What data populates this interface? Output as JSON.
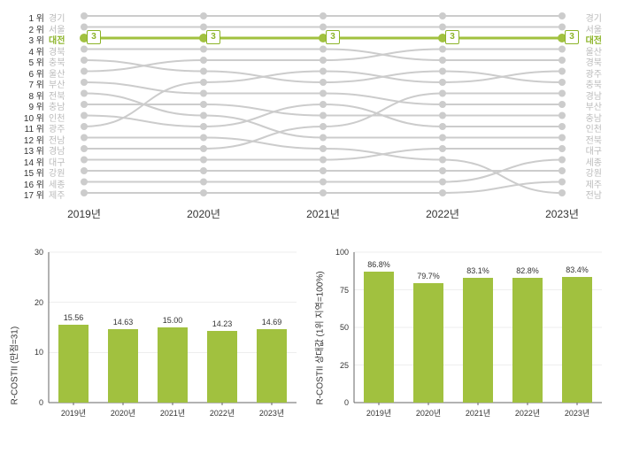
{
  "bump_chart": {
    "type": "bump",
    "years": [
      "2019년",
      "2020년",
      "2021년",
      "2022년",
      "2023년"
    ],
    "ranks": [
      "1 위",
      "2 위",
      "3 위",
      "4 위",
      "5 위",
      "6 위",
      "7 위",
      "8 위",
      "9 위",
      "10 위",
      "11 위",
      "12 위",
      "13 위",
      "14 위",
      "15 위",
      "16 위",
      "17 위"
    ],
    "regions_2019": [
      "경기",
      "서울",
      "대전",
      "경북",
      "충북",
      "울산",
      "부산",
      "전북",
      "충남",
      "인천",
      "광주",
      "전남",
      "경남",
      "대구",
      "강원",
      "세종",
      "제주"
    ],
    "regions_2023": [
      "경기",
      "서울",
      "대전",
      "울산",
      "경북",
      "광주",
      "충북",
      "경남",
      "부산",
      "충남",
      "인천",
      "전북",
      "대구",
      "세종",
      "강원",
      "제주",
      "전남"
    ],
    "highlight_region": "대전",
    "highlight_rank": 3,
    "highlight_badge": "3",
    "highlight_color": "#a1c13f",
    "muted_color": "#cccccc",
    "node_color": "#cccccc",
    "rank_series": {
      "경기": [
        1,
        1,
        1,
        1,
        1
      ],
      "서울": [
        2,
        2,
        2,
        2,
        2
      ],
      "대전": [
        3,
        3,
        3,
        3,
        3
      ],
      "경북": [
        4,
        4,
        4,
        5,
        5
      ],
      "충북": [
        5,
        6,
        7,
        6,
        7
      ],
      "울산": [
        6,
        5,
        5,
        4,
        4
      ],
      "부산": [
        7,
        8,
        8,
        9,
        9
      ],
      "전북": [
        8,
        10,
        12,
        12,
        12
      ],
      "충남": [
        9,
        9,
        10,
        10,
        10
      ],
      "인천": [
        10,
        11,
        9,
        11,
        11
      ],
      "광주": [
        11,
        7,
        6,
        7,
        6
      ],
      "전남": [
        12,
        12,
        13,
        14,
        17
      ],
      "경남": [
        13,
        13,
        11,
        8,
        8
      ],
      "대구": [
        14,
        14,
        14,
        13,
        13
      ],
      "강원": [
        15,
        15,
        15,
        15,
        15
      ],
      "세종": [
        16,
        16,
        16,
        16,
        14
      ],
      "제주": [
        17,
        17,
        17,
        17,
        16
      ]
    }
  },
  "left_chart": {
    "type": "bar",
    "ytitle": "R-COSTII (만점=31)",
    "categories": [
      "2019년",
      "2020년",
      "2021년",
      "2022년",
      "2023년"
    ],
    "values": [
      15.56,
      14.63,
      15.0,
      14.23,
      14.69
    ],
    "labels": [
      "15.56",
      "14.63",
      "15.00",
      "14.23",
      "14.69"
    ],
    "ylim": [
      0,
      30
    ],
    "yticks": [
      0,
      10,
      20,
      30
    ],
    "bar_color": "#a1c13f",
    "bg": "#ffffff"
  },
  "right_chart": {
    "type": "bar",
    "ytitle": "R-COSTII 상대값 (1위 지역=100%)",
    "categories": [
      "2019년",
      "2020년",
      "2021년",
      "2022년",
      "2023년"
    ],
    "values": [
      86.8,
      79.7,
      83.1,
      82.8,
      83.4
    ],
    "labels": [
      "86.8%",
      "79.7%",
      "83.1%",
      "82.8%",
      "83.4%"
    ],
    "ylim": [
      0,
      100
    ],
    "yticks": [
      0,
      25,
      50,
      75,
      100
    ],
    "bar_color": "#a1c13f",
    "bg": "#ffffff"
  }
}
